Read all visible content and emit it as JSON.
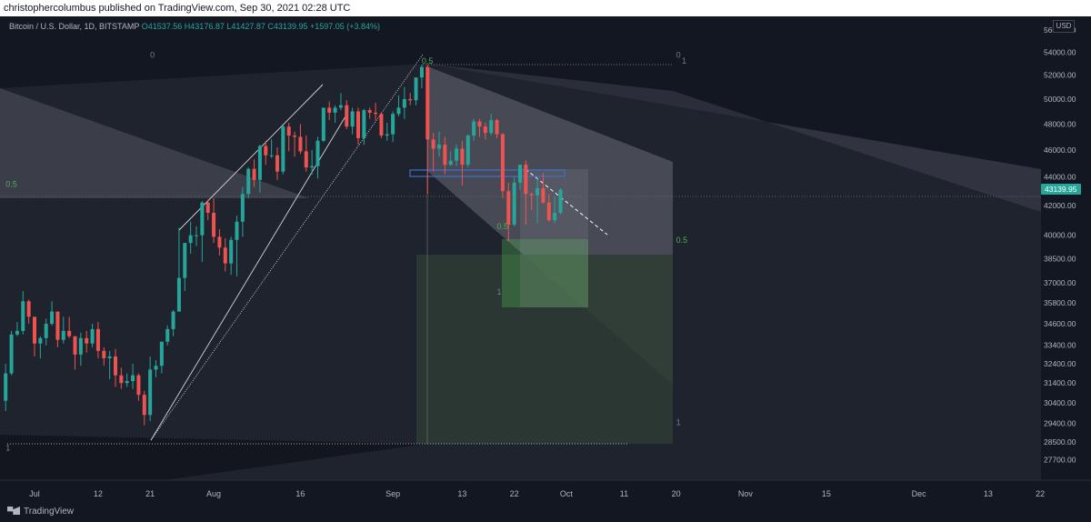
{
  "header": {
    "publisher_text": "christophercolumbus published on TradingView.com, Sep 30, 2021 02:28 UTC"
  },
  "legend": {
    "symbol": "Bitcoin / U.S. Dollar, 1D, BITSTAMP",
    "open": "O41537.56",
    "high": "H43176.87",
    "low": "L41427.87",
    "close": "C43139.95",
    "change": "+1597.05 (+3.84%)"
  },
  "currency_label": "USD",
  "current_price_label": "43139.95",
  "footer": {
    "brand": "TradingView"
  },
  "colors": {
    "up": "#26a69a",
    "down": "#ef5350",
    "background": "#131722",
    "fib_green": "#4caf50",
    "price_tag": "#26a69a"
  },
  "chart_data": {
    "type": "candlestick",
    "title": "",
    "xlabel": "",
    "ylabel": "",
    "ylim": [
      26900,
      57000
    ],
    "y_scale": "log",
    "x_tick_labels": [
      "Jul",
      "12",
      "21",
      "Aug",
      "16",
      "Sep",
      "13",
      "22",
      "Oct",
      "11",
      "20",
      "Nov",
      "15",
      "Dec",
      "13",
      "22"
    ],
    "x_tick_dates": [
      "2021-07-01",
      "2021-07-12",
      "2021-07-21",
      "2021-08-01",
      "2021-08-16",
      "2021-09-01",
      "2021-09-13",
      "2021-09-22",
      "2021-10-01",
      "2021-10-11",
      "2021-10-20",
      "2021-11-01",
      "2021-11-15",
      "2021-12-01",
      "2021-12-13",
      "2021-12-22"
    ],
    "y_tick_labels": [
      "56000.00",
      "54000.00",
      "52000.00",
      "50000.00",
      "48000.00",
      "46000.00",
      "44000.00",
      "42000.00",
      "40000.00",
      "38500.00",
      "37000.00",
      "35800.00",
      "34600.00",
      "33400.00",
      "32400.00",
      "31400.00",
      "30400.00",
      "29400.00",
      "28500.00",
      "27700.00"
    ],
    "y_tick_values": [
      56000,
      54000,
      52000,
      50000,
      48000,
      46000,
      44000,
      42000,
      40000,
      38500,
      37000,
      35800,
      34600,
      33400,
      32400,
      31400,
      30400,
      29400,
      28500,
      27700
    ],
    "current_price": 43139.95,
    "fib_labels": [
      {
        "text": "0",
        "date": "2021-07-21",
        "price": 53500
      },
      {
        "text": "0.5",
        "date": "2021-06-26",
        "price": 43300
      },
      {
        "text": "1",
        "date": "2021-06-26",
        "price": 28100
      },
      {
        "text": "0.5",
        "date": "2021-09-06",
        "price": 53000
      },
      {
        "text": "0",
        "date": "2021-10-20",
        "price": 53500
      },
      {
        "text": "1",
        "date": "2021-10-21",
        "price": 53000
      },
      {
        "text": "0.5",
        "date": "2021-09-19",
        "price": 40400
      },
      {
        "text": "1",
        "date": "2021-09-19",
        "price": 36300
      },
      {
        "text": "0.5",
        "date": "2021-10-20",
        "price": 39500
      },
      {
        "text": "1",
        "date": "2021-10-20",
        "price": 29300
      }
    ],
    "candles": [
      {
        "d": "2021-06-26",
        "o": 30500,
        "h": 32400,
        "l": 30000,
        "c": 31900
      },
      {
        "d": "2021-06-27",
        "o": 31900,
        "h": 34200,
        "l": 31800,
        "c": 34000
      },
      {
        "d": "2021-06-28",
        "o": 34000,
        "h": 34700,
        "l": 33900,
        "c": 34200
      },
      {
        "d": "2021-06-29",
        "o": 34200,
        "h": 36500,
        "l": 34000,
        "c": 35900
      },
      {
        "d": "2021-06-30",
        "o": 35900,
        "h": 36000,
        "l": 34600,
        "c": 35000
      },
      {
        "d": "2021-07-01",
        "o": 35000,
        "h": 35000,
        "l": 32800,
        "c": 33500
      },
      {
        "d": "2021-07-02",
        "o": 33500,
        "h": 33900,
        "l": 32700,
        "c": 33800
      },
      {
        "d": "2021-07-03",
        "o": 33800,
        "h": 34900,
        "l": 33400,
        "c": 34600
      },
      {
        "d": "2021-07-04",
        "o": 34600,
        "h": 35900,
        "l": 34500,
        "c": 35300
      },
      {
        "d": "2021-07-05",
        "o": 35300,
        "h": 35300,
        "l": 33300,
        "c": 33700
      },
      {
        "d": "2021-07-06",
        "o": 33700,
        "h": 35000,
        "l": 33500,
        "c": 34200
      },
      {
        "d": "2021-07-07",
        "o": 34200,
        "h": 35000,
        "l": 33800,
        "c": 33900
      },
      {
        "d": "2021-07-08",
        "o": 33900,
        "h": 33900,
        "l": 32100,
        "c": 32900
      },
      {
        "d": "2021-07-09",
        "o": 32900,
        "h": 34100,
        "l": 32300,
        "c": 33800
      },
      {
        "d": "2021-07-10",
        "o": 33800,
        "h": 34200,
        "l": 33000,
        "c": 33500
      },
      {
        "d": "2021-07-11",
        "o": 33500,
        "h": 34600,
        "l": 33300,
        "c": 34300
      },
      {
        "d": "2021-07-12",
        "o": 34300,
        "h": 34700,
        "l": 32700,
        "c": 33100
      },
      {
        "d": "2021-07-13",
        "o": 33100,
        "h": 33300,
        "l": 32300,
        "c": 32700
      },
      {
        "d": "2021-07-14",
        "o": 32700,
        "h": 33100,
        "l": 31600,
        "c": 32800
      },
      {
        "d": "2021-07-15",
        "o": 32800,
        "h": 33200,
        "l": 31200,
        "c": 31800
      },
      {
        "d": "2021-07-16",
        "o": 31800,
        "h": 32200,
        "l": 31100,
        "c": 31400
      },
      {
        "d": "2021-07-17",
        "o": 31400,
        "h": 31900,
        "l": 31200,
        "c": 31500
      },
      {
        "d": "2021-07-18",
        "o": 31500,
        "h": 32400,
        "l": 31100,
        "c": 31800
      },
      {
        "d": "2021-07-19",
        "o": 31800,
        "h": 31900,
        "l": 30500,
        "c": 30800
      },
      {
        "d": "2021-07-20",
        "o": 30800,
        "h": 31000,
        "l": 29300,
        "c": 29800
      },
      {
        "d": "2021-07-21",
        "o": 29800,
        "h": 32800,
        "l": 29500,
        "c": 32100
      },
      {
        "d": "2021-07-22",
        "o": 32100,
        "h": 32600,
        "l": 31700,
        "c": 32300
      },
      {
        "d": "2021-07-23",
        "o": 32300,
        "h": 33600,
        "l": 31900,
        "c": 33600
      },
      {
        "d": "2021-07-24",
        "o": 33600,
        "h": 34500,
        "l": 33400,
        "c": 34300
      },
      {
        "d": "2021-07-25",
        "o": 34300,
        "h": 35400,
        "l": 33900,
        "c": 35300
      },
      {
        "d": "2021-07-26",
        "o": 35300,
        "h": 40500,
        "l": 35300,
        "c": 37300
      },
      {
        "d": "2021-07-27",
        "o": 37300,
        "h": 39500,
        "l": 36500,
        "c": 39500
      },
      {
        "d": "2021-07-28",
        "o": 39500,
        "h": 40900,
        "l": 38800,
        "c": 40000
      },
      {
        "d": "2021-07-29",
        "o": 40000,
        "h": 40600,
        "l": 39300,
        "c": 40000
      },
      {
        "d": "2021-07-30",
        "o": 40000,
        "h": 42300,
        "l": 38300,
        "c": 42200
      },
      {
        "d": "2021-07-31",
        "o": 42200,
        "h": 42400,
        "l": 41000,
        "c": 41500
      },
      {
        "d": "2021-08-01",
        "o": 41500,
        "h": 42500,
        "l": 39500,
        "c": 39900
      },
      {
        "d": "2021-08-02",
        "o": 39900,
        "h": 40400,
        "l": 38700,
        "c": 39200
      },
      {
        "d": "2021-08-03",
        "o": 39200,
        "h": 39800,
        "l": 37700,
        "c": 38200
      },
      {
        "d": "2021-08-04",
        "o": 38200,
        "h": 39900,
        "l": 37500,
        "c": 39700
      },
      {
        "d": "2021-08-05",
        "o": 39700,
        "h": 41300,
        "l": 37400,
        "c": 40900
      },
      {
        "d": "2021-08-06",
        "o": 40900,
        "h": 43300,
        "l": 39900,
        "c": 42800
      },
      {
        "d": "2021-08-07",
        "o": 42800,
        "h": 44700,
        "l": 42500,
        "c": 44600
      },
      {
        "d": "2021-08-08",
        "o": 44600,
        "h": 45300,
        "l": 43300,
        "c": 43800
      },
      {
        "d": "2021-08-09",
        "o": 43800,
        "h": 46400,
        "l": 42900,
        "c": 46300
      },
      {
        "d": "2021-08-10",
        "o": 46300,
        "h": 46700,
        "l": 44900,
        "c": 45600
      },
      {
        "d": "2021-08-11",
        "o": 45600,
        "h": 46800,
        "l": 45400,
        "c": 45600
      },
      {
        "d": "2021-08-12",
        "o": 45600,
        "h": 46200,
        "l": 43800,
        "c": 44400
      },
      {
        "d": "2021-08-13",
        "o": 44400,
        "h": 47900,
        "l": 44200,
        "c": 47800
      },
      {
        "d": "2021-08-14",
        "o": 47800,
        "h": 48100,
        "l": 45900,
        "c": 47100
      },
      {
        "d": "2021-08-15",
        "o": 47100,
        "h": 47400,
        "l": 45500,
        "c": 47000
      },
      {
        "d": "2021-08-16",
        "o": 47000,
        "h": 48000,
        "l": 45700,
        "c": 45900
      },
      {
        "d": "2021-08-17",
        "o": 45900,
        "h": 47100,
        "l": 44400,
        "c": 44700
      },
      {
        "d": "2021-08-18",
        "o": 44700,
        "h": 46000,
        "l": 44200,
        "c": 44800
      },
      {
        "d": "2021-08-19",
        "o": 44800,
        "h": 47000,
        "l": 43900,
        "c": 46700
      },
      {
        "d": "2021-08-20",
        "o": 46700,
        "h": 49300,
        "l": 46600,
        "c": 49300
      },
      {
        "d": "2021-08-21",
        "o": 49300,
        "h": 49800,
        "l": 48300,
        "c": 48900
      },
      {
        "d": "2021-08-22",
        "o": 48900,
        "h": 49500,
        "l": 48100,
        "c": 49300
      },
      {
        "d": "2021-08-23",
        "o": 49300,
        "h": 50500,
        "l": 49100,
        "c": 49500
      },
      {
        "d": "2021-08-24",
        "o": 49500,
        "h": 49900,
        "l": 47600,
        "c": 47800
      },
      {
        "d": "2021-08-25",
        "o": 47800,
        "h": 49300,
        "l": 47200,
        "c": 49000
      },
      {
        "d": "2021-08-26",
        "o": 49000,
        "h": 49300,
        "l": 46400,
        "c": 46900
      },
      {
        "d": "2021-08-27",
        "o": 46900,
        "h": 49200,
        "l": 46400,
        "c": 49100
      },
      {
        "d": "2021-08-28",
        "o": 49100,
        "h": 49300,
        "l": 48400,
        "c": 48900
      },
      {
        "d": "2021-08-29",
        "o": 48900,
        "h": 49700,
        "l": 48300,
        "c": 48800
      },
      {
        "d": "2021-08-30",
        "o": 48800,
        "h": 48900,
        "l": 46900,
        "c": 47100
      },
      {
        "d": "2021-08-31",
        "o": 47100,
        "h": 48100,
        "l": 46700,
        "c": 47200
      },
      {
        "d": "2021-09-01",
        "o": 47200,
        "h": 49000,
        "l": 46600,
        "c": 48800
      },
      {
        "d": "2021-09-02",
        "o": 48800,
        "h": 50300,
        "l": 48600,
        "c": 49300
      },
      {
        "d": "2021-09-03",
        "o": 49300,
        "h": 51000,
        "l": 48400,
        "c": 50000
      },
      {
        "d": "2021-09-04",
        "o": 50000,
        "h": 50500,
        "l": 49500,
        "c": 49900
      },
      {
        "d": "2021-09-05",
        "o": 49900,
        "h": 51800,
        "l": 49500,
        "c": 51800
      },
      {
        "d": "2021-09-06",
        "o": 51800,
        "h": 52900,
        "l": 50900,
        "c": 52700
      },
      {
        "d": "2021-09-07",
        "o": 52700,
        "h": 52900,
        "l": 42800,
        "c": 46800
      },
      {
        "d": "2021-09-08",
        "o": 46800,
        "h": 47300,
        "l": 44400,
        "c": 46100
      },
      {
        "d": "2021-09-09",
        "o": 46100,
        "h": 47400,
        "l": 45500,
        "c": 46400
      },
      {
        "d": "2021-09-10",
        "o": 46400,
        "h": 47000,
        "l": 44200,
        "c": 44900
      },
      {
        "d": "2021-09-11",
        "o": 44900,
        "h": 45900,
        "l": 44800,
        "c": 45200
      },
      {
        "d": "2021-09-12",
        "o": 45200,
        "h": 46400,
        "l": 44800,
        "c": 46100
      },
      {
        "d": "2021-09-13",
        "o": 46100,
        "h": 46700,
        "l": 43400,
        "c": 44900
      },
      {
        "d": "2021-09-14",
        "o": 44900,
        "h": 47200,
        "l": 44700,
        "c": 47100
      },
      {
        "d": "2021-09-15",
        "o": 47100,
        "h": 48400,
        "l": 46700,
        "c": 48200
      },
      {
        "d": "2021-09-16",
        "o": 48200,
        "h": 48400,
        "l": 47000,
        "c": 47800
      },
      {
        "d": "2021-09-17",
        "o": 47800,
        "h": 48100,
        "l": 46800,
        "c": 47300
      },
      {
        "d": "2021-09-18",
        "o": 47300,
        "h": 48800,
        "l": 47100,
        "c": 48300
      },
      {
        "d": "2021-09-19",
        "o": 48300,
        "h": 48400,
        "l": 46900,
        "c": 47200
      },
      {
        "d": "2021-09-20",
        "o": 47200,
        "h": 47300,
        "l": 42500,
        "c": 43000
      },
      {
        "d": "2021-09-21",
        "o": 43000,
        "h": 43600,
        "l": 39600,
        "c": 40700
      },
      {
        "d": "2021-09-22",
        "o": 40700,
        "h": 44000,
        "l": 40600,
        "c": 43600
      },
      {
        "d": "2021-09-23",
        "o": 43600,
        "h": 44900,
        "l": 43100,
        "c": 44900
      },
      {
        "d": "2021-09-24",
        "o": 44900,
        "h": 45200,
        "l": 40700,
        "c": 42800
      },
      {
        "d": "2021-09-25",
        "o": 42800,
        "h": 42900,
        "l": 41700,
        "c": 42700
      },
      {
        "d": "2021-09-26",
        "o": 42700,
        "h": 43900,
        "l": 40800,
        "c": 43200
      },
      {
        "d": "2021-09-27",
        "o": 43200,
        "h": 44300,
        "l": 42100,
        "c": 42200
      },
      {
        "d": "2021-09-28",
        "o": 42200,
        "h": 42800,
        "l": 40900,
        "c": 41000
      },
      {
        "d": "2021-09-29",
        "o": 41000,
        "h": 42600,
        "l": 40800,
        "c": 41500
      },
      {
        "d": "2021-09-30",
        "o": 41500,
        "h": 43200,
        "l": 41400,
        "c": 43100
      }
    ]
  }
}
